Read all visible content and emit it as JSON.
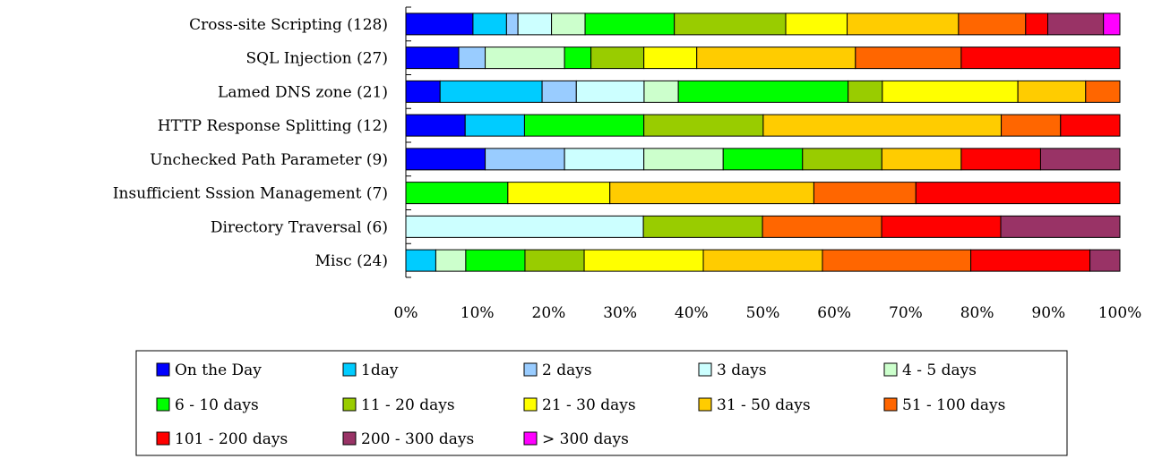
{
  "chart_data": {
    "type": "bar",
    "orientation": "horizontal",
    "stacked": "percent",
    "title": "",
    "xlabel": "",
    "ylabel": "",
    "xlim": [
      0,
      100
    ],
    "x_ticks": [
      "0%",
      "10%",
      "20%",
      "30%",
      "40%",
      "50%",
      "60%",
      "70%",
      "80%",
      "90%",
      "100%"
    ],
    "grid": false,
    "legend_position": "bottom",
    "categories": [
      "Cross-site Scripting (128)",
      "SQL Injection  (27)",
      "Lamed DNS zone  (21)",
      "HTTP Response Splitting  (12)",
      "Unchecked Path Parameter   (9)",
      "Insufficient Sssion Management   (7)",
      "Directory Traversal   (6)",
      "Misc  (24)"
    ],
    "series": [
      {
        "name": "On the Day",
        "color": "#0000ff",
        "values": [
          9.4,
          7.4,
          4.8,
          8.3,
          11.1,
          0,
          0,
          0
        ]
      },
      {
        "name": "1day",
        "color": "#00ccff",
        "values": [
          4.7,
          0,
          14.3,
          8.3,
          0,
          0,
          0,
          4.2
        ]
      },
      {
        "name": "2 days",
        "color": "#99ccff",
        "values": [
          1.6,
          3.7,
          4.8,
          0,
          11.1,
          0,
          0,
          0
        ]
      },
      {
        "name": "3 days",
        "color": "#ccffff",
        "values": [
          4.7,
          0,
          9.5,
          0,
          11.1,
          0,
          33.3,
          0
        ]
      },
      {
        "name": "4 - 5 days",
        "color": "#ccffcc",
        "values": [
          4.7,
          11.1,
          4.8,
          0,
          11.1,
          0,
          0,
          4.2
        ]
      },
      {
        "name": "6 - 10 days",
        "color": "#00ff00",
        "values": [
          12.5,
          3.7,
          23.8,
          16.7,
          11.1,
          14.3,
          0,
          8.3
        ]
      },
      {
        "name": "11 - 20 days",
        "color": "#99cc00",
        "values": [
          15.6,
          7.4,
          4.8,
          16.7,
          11.1,
          0,
          16.7,
          8.3
        ]
      },
      {
        "name": "21 - 30 days",
        "color": "#ffff00",
        "values": [
          8.6,
          7.4,
          19.0,
          0,
          0,
          14.3,
          0,
          16.7
        ]
      },
      {
        "name": "31 - 50 days",
        "color": "#ffcc00",
        "values": [
          15.6,
          22.2,
          9.5,
          33.3,
          11.1,
          28.6,
          0,
          16.7
        ]
      },
      {
        "name": "51 - 100 days",
        "color": "#ff6600",
        "values": [
          9.4,
          14.8,
          4.8,
          8.3,
          0,
          14.3,
          16.7,
          20.8
        ]
      },
      {
        "name": "101 - 200 days",
        "color": "#ff0000",
        "values": [
          3.1,
          22.2,
          0,
          8.3,
          11.1,
          28.6,
          16.7,
          16.7
        ]
      },
      {
        "name": "200 - 300 days",
        "color": "#993366",
        "values": [
          7.8,
          0,
          0,
          0,
          11.1,
          0,
          16.7,
          4.2
        ]
      },
      {
        "name": "> 300 days",
        "color": "#ff00ff",
        "values": [
          2.3,
          0,
          0,
          0,
          0,
          0,
          0,
          0
        ]
      }
    ]
  }
}
